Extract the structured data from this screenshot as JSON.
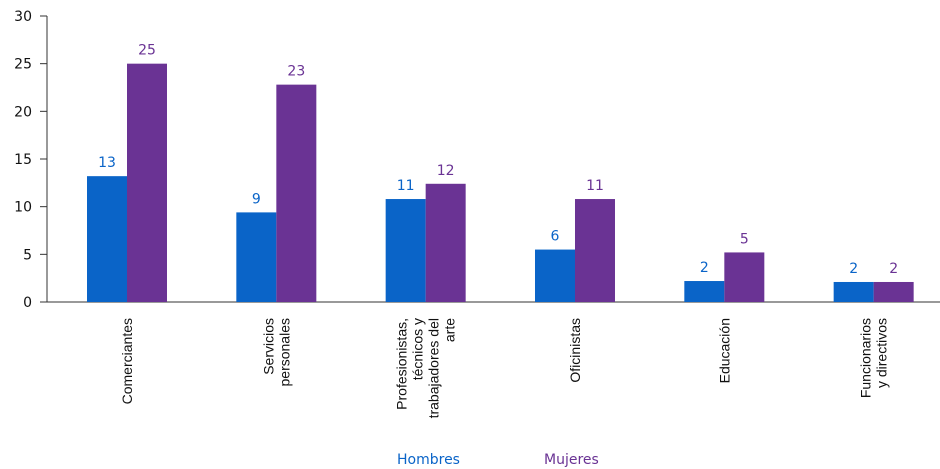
{
  "chart_data": {
    "type": "bar",
    "categories": [
      [
        "Comerciantes"
      ],
      [
        "Servicios",
        "personales"
      ],
      [
        "Profesionistas,",
        "técnicos y",
        "trabajadores del",
        "arte"
      ],
      [
        "Oficinistas"
      ],
      [
        "Educación"
      ],
      [
        "Funcionarios",
        "y directivos"
      ]
    ],
    "series": [
      {
        "name": "Hombres",
        "color": "#0a64c8",
        "values": [
          13.2,
          9.4,
          10.8,
          5.5,
          2.2,
          2.1
        ],
        "labels": [
          "13",
          "9",
          "11",
          "6",
          "2",
          "2"
        ]
      },
      {
        "name": "Mujeres",
        "color": "#6a3394",
        "values": [
          25.0,
          22.8,
          12.4,
          10.8,
          5.2,
          2.1
        ],
        "labels": [
          "25",
          "23",
          "12",
          "11",
          "5",
          "2"
        ]
      }
    ],
    "ylim": [
      0,
      30
    ],
    "yticks": [
      "0",
      "5",
      "10",
      "15",
      "20",
      "25",
      "30"
    ],
    "legend_position": "bottom",
    "grid": false
  }
}
